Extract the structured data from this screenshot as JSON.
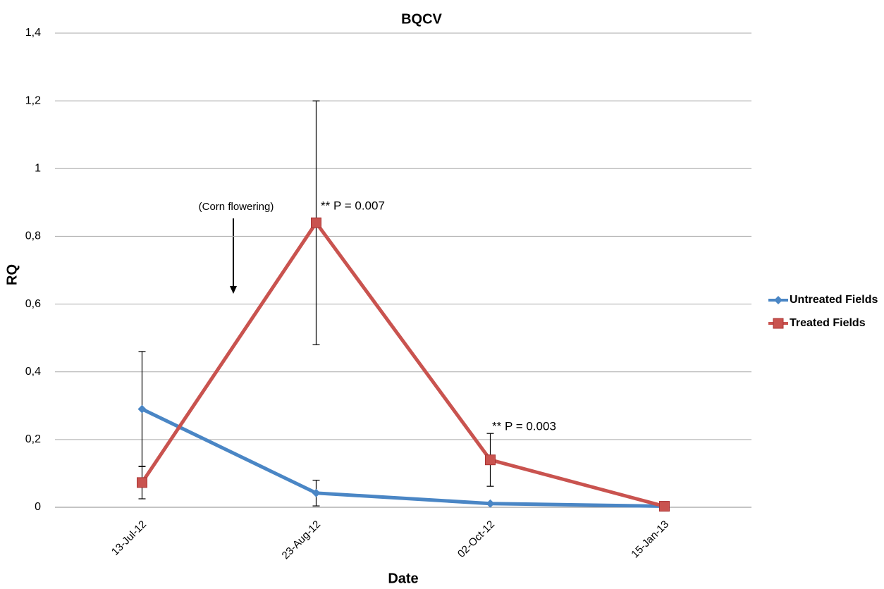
{
  "chart_data": {
    "type": "line",
    "title": "BQCV",
    "x_label": "Date",
    "y_label": "RQ",
    "categories": [
      "13-Jul-12",
      "23-Aug-12",
      "02-Oct-12",
      "15-Jan-13"
    ],
    "series": [
      {
        "name": "Untreated Fields",
        "color": "#4a86c5",
        "marker": "diamond",
        "values": [
          0.29,
          0.042,
          0.011,
          0.003
        ],
        "errors": [
          0.17,
          0.038,
          null,
          null
        ]
      },
      {
        "name": "Treated Fields",
        "color": "#c9534f",
        "marker": "square",
        "values": [
          0.073,
          0.84,
          0.14,
          0.003
        ],
        "errors": [
          0.048,
          0.36,
          0.078,
          null
        ]
      }
    ],
    "ylim": [
      0,
      1.4
    ],
    "yticks": [
      0,
      {
        "value": 0.2,
        "label": "0,2"
      },
      {
        "value": 0.4,
        "label": "0,4"
      },
      {
        "value": 0.6,
        "label": "0,6"
      },
      {
        "value": 0.8,
        "label": "0,8"
      },
      1,
      {
        "value": 1.2,
        "label": "1,2"
      },
      {
        "value": 1.4,
        "label": "1,4"
      }
    ],
    "grid": true,
    "legend": "right",
    "annotations": [
      "(Corn flowering)",
      "** P = 0.007",
      "** P = 0.003"
    ]
  }
}
